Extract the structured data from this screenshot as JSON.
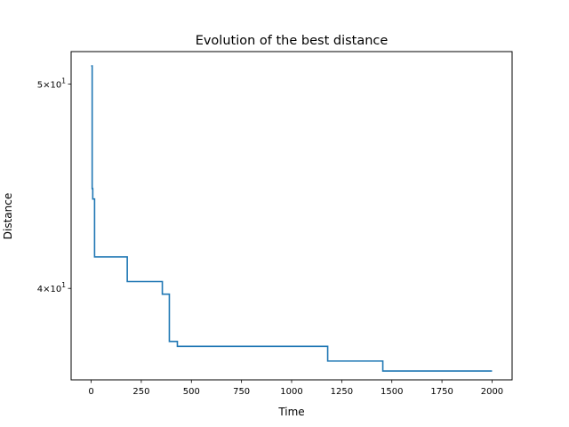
{
  "chart_data": {
    "type": "line",
    "title": "Evolution of the best distance",
    "xlabel": "Time",
    "ylabel": "Distance",
    "xlim": [
      -100,
      2100
    ],
    "ylim": [
      36.2,
      51.8
    ],
    "yscale": "log",
    "grid": false,
    "x_ticks": [
      0,
      250,
      500,
      750,
      1000,
      1250,
      1500,
      1750,
      2000
    ],
    "x_tick_labels": [
      "0",
      "250",
      "500",
      "750",
      "1000",
      "1250",
      "1500",
      "1750",
      "2000"
    ],
    "y_ticks": [
      {
        "value": 50,
        "mantissa": "5",
        "times": "×",
        "base": "10",
        "exponent": "1"
      },
      {
        "value": 40,
        "mantissa": "4",
        "times": "×",
        "base": "10",
        "exponent": "1"
      }
    ],
    "series": [
      {
        "color": "#1f77b4",
        "x": [
          0,
          5,
          5,
          8,
          8,
          17,
          17,
          180,
          180,
          355,
          355,
          390,
          390,
          430,
          430,
          1180,
          1180,
          1455,
          1455,
          2000
        ],
        "y": [
          51.0,
          51.0,
          44.6,
          44.6,
          44.1,
          44.1,
          41.4,
          41.4,
          40.3,
          40.3,
          39.75,
          39.75,
          37.75,
          37.75,
          37.55,
          37.55,
          36.95,
          36.95,
          36.55,
          36.55
        ]
      }
    ]
  }
}
